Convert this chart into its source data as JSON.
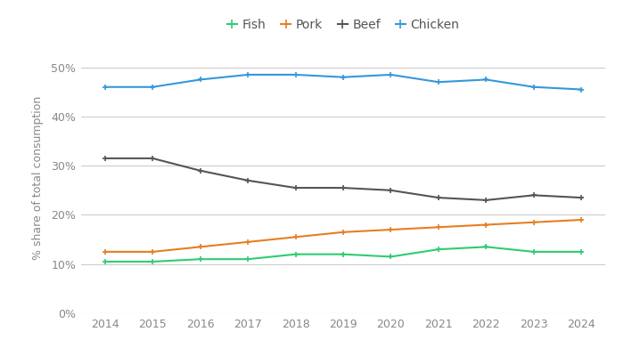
{
  "years": [
    2014,
    2015,
    2016,
    2017,
    2018,
    2019,
    2020,
    2021,
    2022,
    2023,
    2024
  ],
  "fish": [
    10.5,
    10.5,
    11.0,
    11.0,
    12.0,
    12.0,
    11.5,
    13.0,
    13.5,
    12.5,
    12.5
  ],
  "pork": [
    12.5,
    12.5,
    13.5,
    14.5,
    15.5,
    16.5,
    17.0,
    17.5,
    18.0,
    18.5,
    19.0
  ],
  "beef": [
    31.5,
    31.5,
    29.0,
    27.0,
    25.5,
    25.5,
    25.0,
    23.5,
    23.0,
    24.0,
    23.5
  ],
  "chicken": [
    46.0,
    46.0,
    47.5,
    48.5,
    48.5,
    48.0,
    48.5,
    47.0,
    47.5,
    46.0,
    45.5
  ],
  "fish_color": "#2ecc71",
  "pork_color": "#e67e22",
  "beef_color": "#555555",
  "chicken_color": "#3498db",
  "bg_color": "#ffffff",
  "grid_color": "#cccccc",
  "ylabel": "% share of total consumption",
  "ylim": [
    0,
    55
  ],
  "yticks": [
    0,
    10,
    20,
    30,
    40,
    50
  ],
  "ytick_labels": [
    "0%",
    "10%",
    "20%",
    "30%",
    "40%",
    "50%"
  ],
  "legend_labels": [
    "Fish",
    "Pork",
    "Beef",
    "Chicken"
  ]
}
